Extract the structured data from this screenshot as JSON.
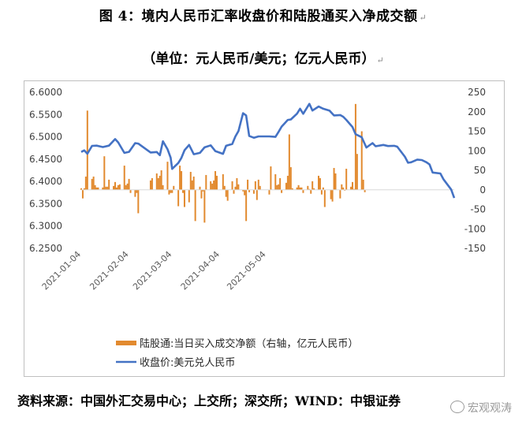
{
  "title": "图 4：境内人民币汇率收盘价和陆股通买入净成交额",
  "subtitle": "（单位：元人民币/美元；亿元人民币）",
  "source": "资料来源：中国外汇交易中心；上交所；深交所；WIND：中银证券",
  "watermark": "宏观观涛",
  "chart_data": {
    "type": "bar+line",
    "x_tick_labels": [
      "2021-01-04",
      "2021-02-04",
      "2021-03-04",
      "2021-04-04",
      "2021-05-04"
    ],
    "left_axis": {
      "ticks": [
        "6.2500",
        "6.3000",
        "6.3500",
        "6.4000",
        "6.4500",
        "6.5000",
        "6.5500",
        "6.6000"
      ],
      "ylim": [
        6.25,
        6.6
      ]
    },
    "right_axis": {
      "ticks": [
        "-150",
        "-100",
        "-50",
        "0",
        "50",
        "100",
        "150",
        "200",
        "250"
      ],
      "ylim": [
        -150,
        250
      ]
    },
    "grid": false,
    "legend_position": "bottom",
    "colors": {
      "bars": "#e28a2f",
      "line": "#4472c4"
    },
    "series": [
      {
        "name": "陆股通:当日买入成交净额（右轴，亿元人民币）",
        "type": "bar",
        "axis": "right",
        "points": [
          [
            "2021-01-04",
            4
          ],
          [
            "2021-01-05",
            -22
          ],
          [
            "2021-01-06",
            4
          ],
          [
            "2021-01-07",
            34
          ],
          [
            "2021-01-08",
            203
          ],
          [
            "2021-01-11",
            28
          ],
          [
            "2021-01-12",
            34
          ],
          [
            "2021-01-13",
            12
          ],
          [
            "2021-01-14",
            6
          ],
          [
            "2021-01-15",
            6
          ],
          [
            "2021-01-18",
            6
          ],
          [
            "2021-01-19",
            86
          ],
          [
            "2021-01-20",
            8
          ],
          [
            "2021-01-21",
            8
          ],
          [
            "2021-01-22",
            26
          ],
          [
            "2021-01-25",
            10
          ],
          [
            "2021-01-26",
            20
          ],
          [
            "2021-01-27",
            6
          ],
          [
            "2021-01-28",
            12
          ],
          [
            "2021-01-29",
            14
          ],
          [
            "2021-02-01",
            62
          ],
          [
            "2021-02-02",
            12
          ],
          [
            "2021-02-03",
            16
          ],
          [
            "2021-02-04",
            28
          ],
          [
            "2021-02-05",
            -8
          ],
          [
            "2021-02-08",
            -18
          ],
          [
            "2021-02-09",
            -8
          ],
          [
            "2021-02-10",
            -60
          ],
          [
            "2021-02-18",
            24
          ],
          [
            "2021-02-19",
            30
          ],
          [
            "2021-02-22",
            42
          ],
          [
            "2021-02-23",
            30
          ],
          [
            "2021-02-24",
            36
          ],
          [
            "2021-02-25",
            50
          ],
          [
            "2021-02-26",
            12
          ],
          [
            "2021-03-01",
            72
          ],
          [
            "2021-03-02",
            -12
          ],
          [
            "2021-03-03",
            -8
          ],
          [
            "2021-03-04",
            -8
          ],
          [
            "2021-03-05",
            10
          ],
          [
            "2021-03-08",
            -42
          ],
          [
            "2021-03-09",
            62
          ],
          [
            "2021-03-10",
            48
          ],
          [
            "2021-03-11",
            -8
          ],
          [
            "2021-03-12",
            -44
          ],
          [
            "2021-03-15",
            -32
          ],
          [
            "2021-03-16",
            46
          ],
          [
            "2021-03-17",
            24
          ],
          [
            "2021-03-18",
            34
          ],
          [
            "2021-03-19",
            -80
          ],
          [
            "2021-03-22",
            8
          ],
          [
            "2021-03-23",
            -22
          ],
          [
            "2021-03-24",
            -4
          ],
          [
            "2021-03-25",
            -84
          ],
          [
            "2021-03-26",
            38
          ],
          [
            "2021-03-29",
            22
          ],
          [
            "2021-03-30",
            16
          ],
          [
            "2021-03-31",
            24
          ],
          [
            "2021-04-01",
            48
          ],
          [
            "2021-04-02",
            36
          ],
          [
            "2021-04-06",
            40
          ],
          [
            "2021-04-07",
            10
          ],
          [
            "2021-04-08",
            -18
          ],
          [
            "2021-04-09",
            -28
          ],
          [
            "2021-04-12",
            22
          ],
          [
            "2021-04-13",
            -10
          ],
          [
            "2021-04-14",
            8
          ],
          [
            "2021-04-15",
            30
          ],
          [
            "2021-04-16",
            14
          ],
          [
            "2021-04-19",
            -4
          ],
          [
            "2021-04-20",
            -14
          ],
          [
            "2021-04-21",
            -80
          ],
          [
            "2021-04-22",
            26
          ],
          [
            "2021-04-23",
            -6
          ],
          [
            "2021-04-26",
            -10
          ],
          [
            "2021-04-27",
            22
          ],
          [
            "2021-04-28",
            -26
          ],
          [
            "2021-04-29",
            26
          ],
          [
            "2021-04-30",
            10
          ],
          [
            "2021-05-06",
            -12
          ],
          [
            "2021-05-07",
            60
          ],
          [
            "2021-05-10",
            40
          ],
          [
            "2021-05-11",
            12
          ],
          [
            "2021-05-12",
            14
          ],
          [
            "2021-05-13",
            30
          ],
          [
            "2021-05-14",
            -8
          ],
          [
            "2021-05-17",
            18
          ],
          [
            "2021-05-18",
            36
          ],
          [
            "2021-05-19",
            142
          ],
          [
            "2021-05-20",
            58
          ],
          [
            "2021-05-21",
            4
          ],
          [
            "2021-05-24",
            6
          ],
          [
            "2021-05-25",
            12
          ],
          [
            "2021-05-26",
            6
          ],
          [
            "2021-05-27",
            6
          ],
          [
            "2021-05-28",
            -8
          ],
          [
            "2021-05-31",
            10
          ],
          [
            "2021-06-01",
            2
          ],
          [
            "2021-06-02",
            -10
          ],
          [
            "2021-06-03",
            22
          ],
          [
            "2021-06-04",
            4
          ],
          [
            "2021-06-07",
            36
          ],
          [
            "2021-06-08",
            30
          ],
          [
            "2021-06-09",
            -12
          ],
          [
            "2021-06-10",
            6
          ],
          [
            "2021-06-11",
            -44
          ],
          [
            "2021-06-15",
            -24
          ],
          [
            "2021-06-16",
            -30
          ],
          [
            "2021-06-17",
            56
          ],
          [
            "2021-06-18",
            42
          ],
          [
            "2021-06-21",
            -22
          ],
          [
            "2021-06-22",
            14
          ],
          [
            "2021-06-23",
            6
          ],
          [
            "2021-06-24",
            -2
          ],
          [
            "2021-06-25",
            54
          ],
          [
            "2021-06-28",
            8
          ],
          [
            "2021-06-29",
            20
          ],
          [
            "2021-06-30",
            2
          ],
          [
            "2021-07-01",
            220
          ],
          [
            "2021-07-02",
            92
          ],
          [
            "2021-07-05",
            150
          ],
          [
            "2021-07-06",
            26
          ],
          [
            "2021-07-07",
            -6
          ]
        ]
      },
      {
        "name": "收盘价:美元兑人民币",
        "type": "line",
        "axis": "left",
        "points": [
          [
            "2021-01-04",
            6.4662
          ],
          [
            "2021-01-06",
            6.4698
          ],
          [
            "2021-01-08",
            6.4621
          ],
          [
            "2021-01-11",
            6.4798
          ],
          [
            "2021-01-14",
            6.4803
          ],
          [
            "2021-01-18",
            6.4772
          ],
          [
            "2021-01-22",
            6.4803
          ],
          [
            "2021-01-26",
            6.495
          ],
          [
            "2021-01-28",
            6.4875
          ],
          [
            "2021-02-01",
            6.464
          ],
          [
            "2021-02-04",
            6.4663
          ],
          [
            "2021-02-08",
            6.486
          ],
          [
            "2021-02-10",
            6.485
          ],
          [
            "2021-02-18",
            6.465
          ],
          [
            "2021-02-22",
            6.466
          ],
          [
            "2021-02-24",
            6.459
          ],
          [
            "2021-02-26",
            6.49
          ],
          [
            "2021-03-01",
            6.472
          ],
          [
            "2021-03-03",
            6.4532
          ],
          [
            "2021-03-04",
            6.4282
          ],
          [
            "2021-03-08",
            6.4415
          ],
          [
            "2021-03-10",
            6.4528
          ],
          [
            "2021-03-12",
            6.47
          ],
          [
            "2021-03-15",
            6.482
          ],
          [
            "2021-03-18",
            6.4611
          ],
          [
            "2021-03-22",
            6.464
          ],
          [
            "2021-03-25",
            6.4765
          ],
          [
            "2021-03-29",
            6.481
          ],
          [
            "2021-04-01",
            6.4682
          ],
          [
            "2021-04-06",
            6.462
          ],
          [
            "2021-04-08",
            6.4799
          ],
          [
            "2021-04-12",
            6.484
          ],
          [
            "2021-04-14",
            6.501
          ],
          [
            "2021-04-16",
            6.513
          ],
          [
            "2021-04-19",
            6.553
          ],
          [
            "2021-04-21",
            6.548
          ],
          [
            "2021-04-23",
            6.502
          ],
          [
            "2021-04-26",
            6.498
          ],
          [
            "2021-04-29",
            6.501
          ],
          [
            "2021-05-06",
            6.501
          ],
          [
            "2021-05-10",
            6.5
          ],
          [
            "2021-05-12",
            6.511
          ],
          [
            "2021-05-14",
            6.523
          ],
          [
            "2021-05-18",
            6.538
          ],
          [
            "2021-05-20",
            6.539
          ],
          [
            "2021-05-24",
            6.552
          ],
          [
            "2021-05-26",
            6.563
          ],
          [
            "2021-05-28",
            6.5518
          ],
          [
            "2021-06-01",
            6.574
          ],
          [
            "2021-06-03",
            6.559
          ],
          [
            "2021-06-07",
            6.568
          ],
          [
            "2021-06-10",
            6.563
          ],
          [
            "2021-06-14",
            6.559
          ],
          [
            "2021-06-17",
            6.548
          ],
          [
            "2021-06-21",
            6.549
          ],
          [
            "2021-06-23",
            6.545
          ],
          [
            "2021-06-25",
            6.538
          ],
          [
            "2021-06-29",
            6.522
          ],
          [
            "2021-07-01",
            6.506
          ],
          [
            "2021-07-05",
            6.499
          ],
          [
            "2021-07-08",
            6.476
          ],
          [
            "2021-07-12",
            6.486
          ],
          [
            "2021-07-14",
            6.479
          ],
          [
            "2021-07-19",
            6.482
          ],
          [
            "2021-07-22",
            6.4795
          ],
          [
            "2021-07-26",
            6.48
          ],
          [
            "2021-07-28",
            6.478
          ],
          [
            "2021-08-02",
            6.4553
          ],
          [
            "2021-08-04",
            6.442
          ],
          [
            "2021-08-06",
            6.443
          ],
          [
            "2021-08-10",
            6.449
          ],
          [
            "2021-08-13",
            6.448
          ],
          [
            "2021-08-16",
            6.443
          ],
          [
            "2021-08-18",
            6.438
          ],
          [
            "2021-08-20",
            6.42
          ],
          [
            "2021-08-25",
            6.418
          ],
          [
            "2021-08-27",
            6.405
          ],
          [
            "2021-09-01",
            6.382
          ],
          [
            "2021-09-03",
            6.363
          ]
        ]
      }
    ]
  }
}
